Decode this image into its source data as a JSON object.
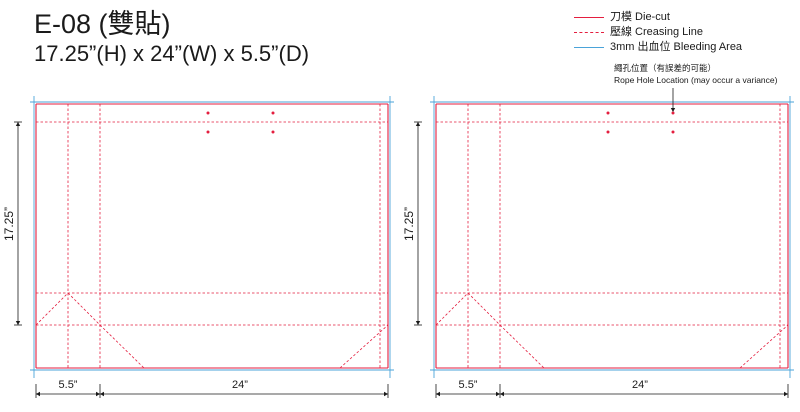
{
  "header": {
    "title": "E-08 (雙貼)",
    "dimensions": "17.25”(H) x 24”(W) x 5.5”(D)"
  },
  "legend": [
    {
      "style": "cut",
      "label": "刀模  Die-cut"
    },
    {
      "style": "crease",
      "label": "壓線  Creasing Line"
    },
    {
      "style": "bleed",
      "label": "3mm 出血位 Bleeding Area"
    }
  ],
  "rope_note": {
    "line1": "繩孔位置（有誤差的可能）",
    "line2": "Rope Hole Location (may occur a variance)"
  },
  "colors": {
    "cut": "#e41e3f",
    "crease": "#e41e3f",
    "bleed": "#4aa3d9",
    "dimension": "#1a1a1a"
  },
  "panels": [
    {
      "height_label": "17.25”",
      "depth_label": "5.5”",
      "width_label": "24”"
    },
    {
      "height_label": "17.25”",
      "depth_label": "5.5”",
      "width_label": "24”"
    }
  ]
}
